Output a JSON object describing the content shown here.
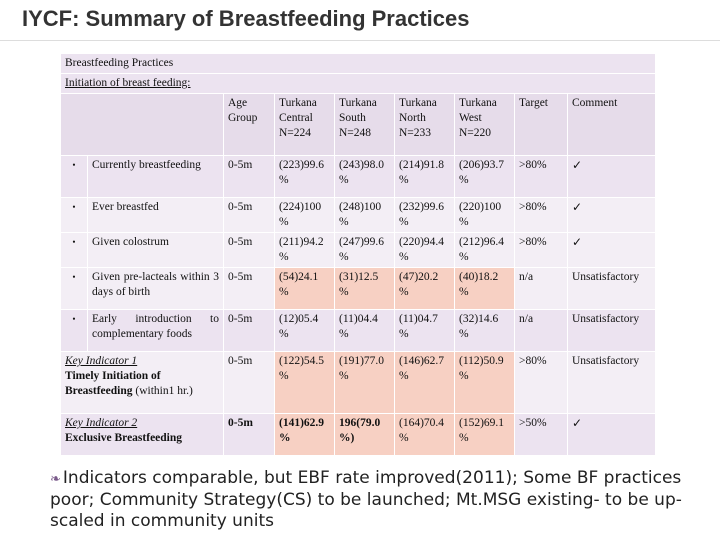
{
  "title": "IYCF: Summary of Breastfeeding Practices",
  "table": {
    "section_title": "Breastfeeding Practices",
    "section_subtitle": "Initiation of breast feeding:",
    "headers": {
      "age_group": "Age Group",
      "turkana_central": "Turkana Central N=224",
      "turkana_south": "Turkana South N=248",
      "turkana_north": "Turkana North N=233",
      "turkana_west": "Turkana West N=220",
      "target": "Target",
      "comment": "Comment"
    },
    "rows": {
      "currently": {
        "bullet": "•",
        "label": "Currently breastfeeding",
        "age": "0-5m",
        "central": "(223)99.6 %",
        "south": "(243)98.0 %",
        "north": "(214)91.8 %",
        "west": "(206)93.7 %",
        "target": ">80%",
        "comment": "✓"
      },
      "ever": {
        "bullet": "•",
        "label": "Ever breastfed",
        "age": "0-5m",
        "central": "(224)100 %",
        "south": "(248)100 %",
        "north": "(232)99.6 %",
        "west": "(220)100 %",
        "target": ">80%",
        "comment": "✓"
      },
      "colostrum": {
        "bullet": "•",
        "label": "Given colostrum",
        "age": "0-5m",
        "central": "(211)94.2 %",
        "south": "(247)99.6 %",
        "north": "(220)94.4 %",
        "west": "(212)96.4 %",
        "target": ">80%",
        "comment": "✓"
      },
      "prelacteals": {
        "bullet": "•",
        "label": "Given pre-lacteals within 3 days of birth",
        "age": "0-5m",
        "central": "(54)24.1 %",
        "south": "(31)12.5 %",
        "north": "(47)20.2 %",
        "west": "(40)18.2 %",
        "target": "n/a",
        "comment": "Unsatisfactory"
      },
      "complementary": {
        "bullet": "•",
        "label": "Early introduction to complementary foods",
        "age": "0-5m",
        "central": "(12)05.4 %",
        "south": "(11)04.4 %",
        "north": "(11)04.7 %",
        "west": "(32)14.6 %",
        "target": "n/a",
        "comment": "Unsatisfactory"
      },
      "key1": {
        "indicator": "Key Indicator 1",
        "label_strong": "Timely Initiation of Breastfeeding",
        "label_rest": " (within1 hr.)",
        "age": "0-5m",
        "central": "(122)54.5 %",
        "south": "(191)77.0 %",
        "north": "(146)62.7 %",
        "west": "(112)50.9 %",
        "target": ">80%",
        "comment": "Unsatisfactory"
      },
      "key2": {
        "indicator": "Key Indicator 2",
        "label_strong": "Exclusive Breastfeeding",
        "age": "0-5m",
        "central": "(141)62.9 %",
        "south": "196(79.0 %)",
        "north": "(164)70.4 %",
        "west": "(152)69.1 %",
        "target": ">50%",
        "comment": "✓"
      }
    }
  },
  "footer": {
    "marker": "❧",
    "text": "Indicators comparable, but EBF rate improved(2011); Some BF practices poor; Community Strategy(CS) to be launched; Mt.MSG existing- to be up-scaled in community units"
  }
}
